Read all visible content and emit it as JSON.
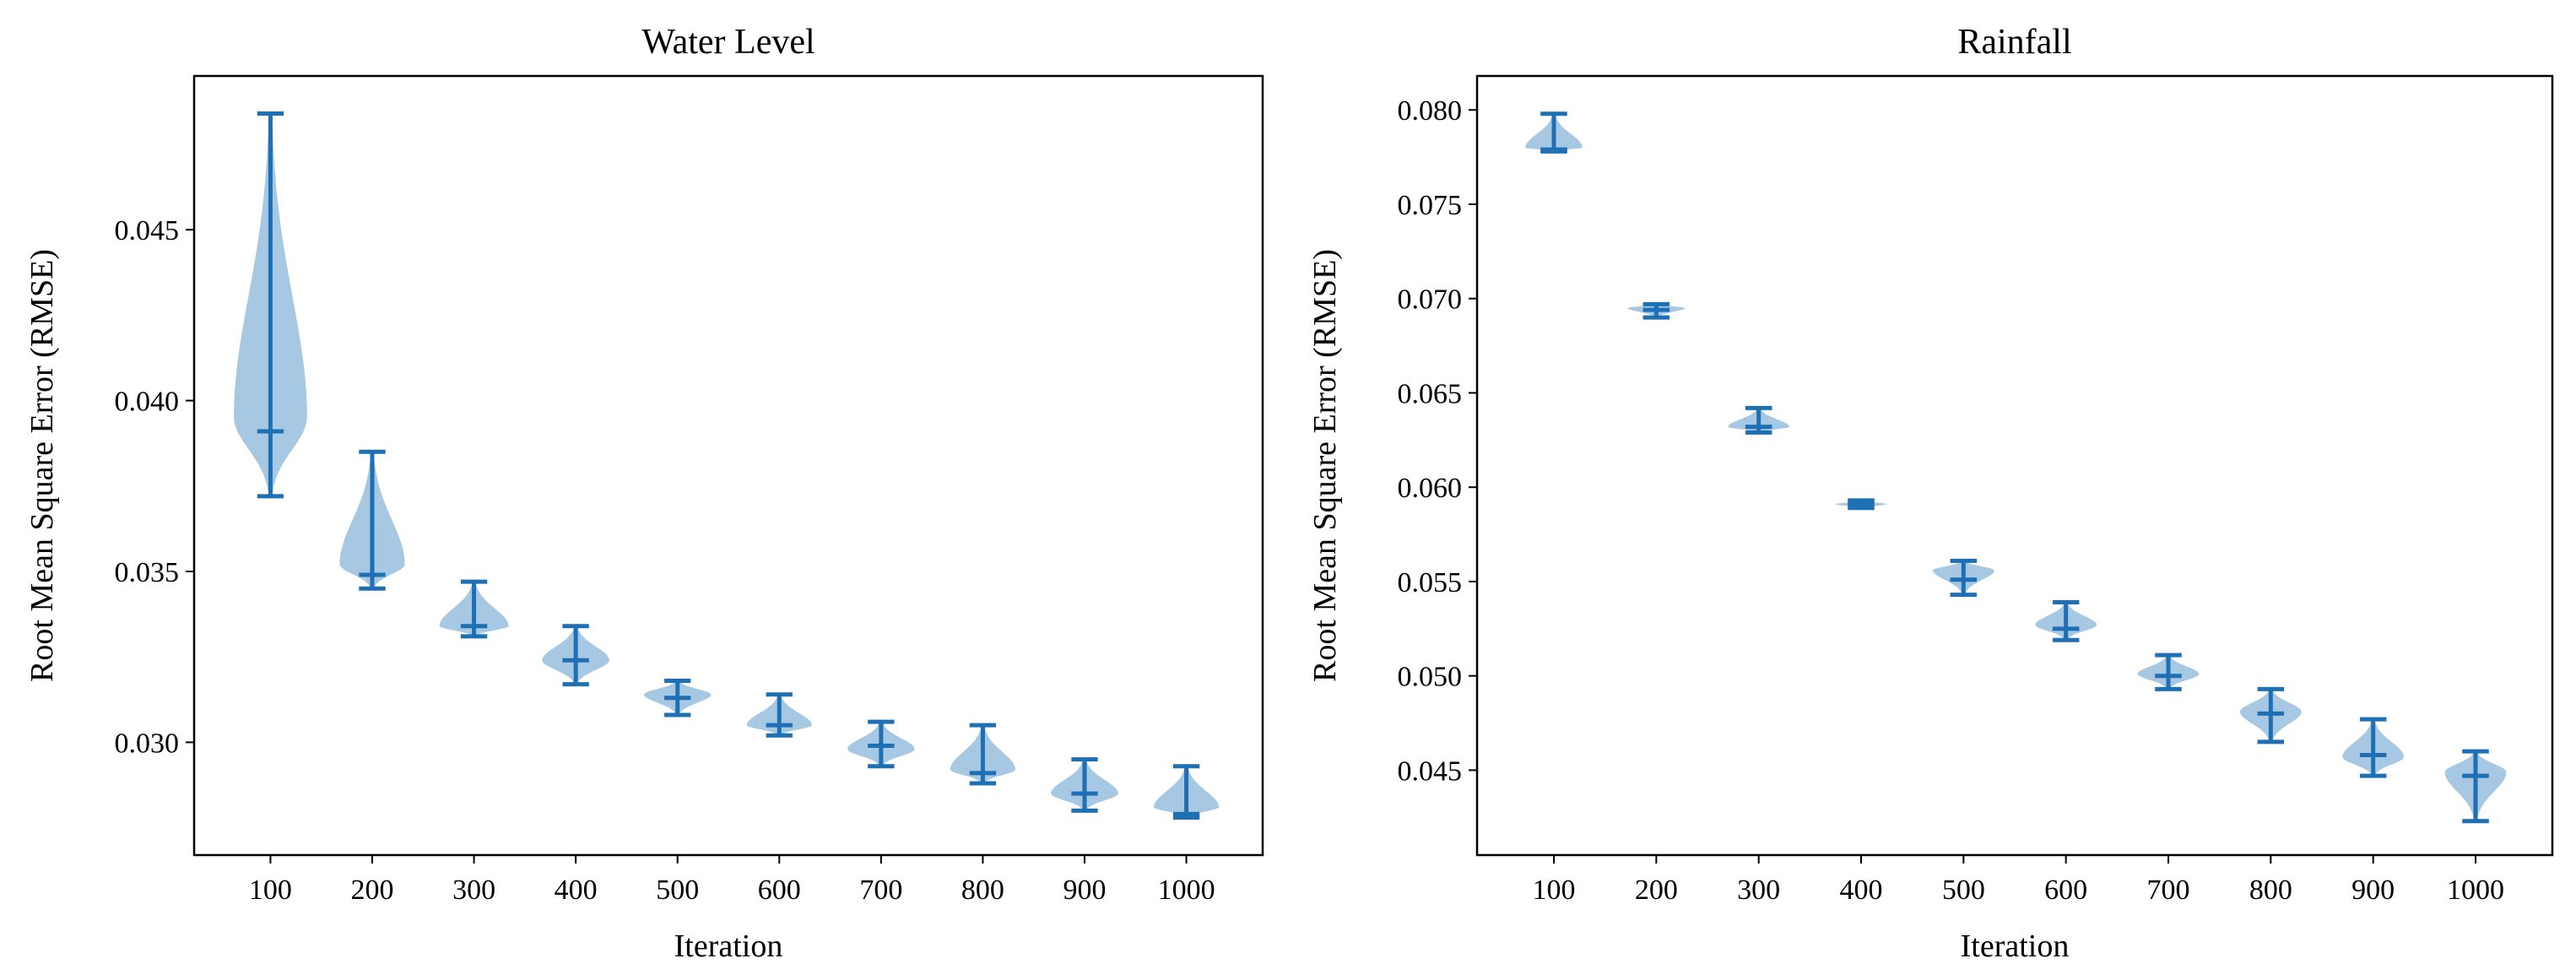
{
  "colors": {
    "violin_fill": "#a6c8e3",
    "marker": "#1f6fb4",
    "axes": "#000000",
    "background": "#ffffff"
  },
  "chart_data": [
    {
      "type": "violin",
      "title": "Water Level",
      "xlabel": "Iteration",
      "ylabel": "Root Mean Square Error (RMSE)",
      "categories": [
        "100",
        "200",
        "300",
        "400",
        "500",
        "600",
        "700",
        "800",
        "900",
        "1000"
      ],
      "ylim": [
        0.0267,
        0.0495
      ],
      "yticks": [
        0.03,
        0.035,
        0.04,
        0.045
      ],
      "ytick_labels": [
        "0.030",
        "0.035",
        "0.040",
        "0.045"
      ],
      "grid": false,
      "violins": [
        {
          "min": 0.0372,
          "median": 0.0391,
          "max": 0.0484,
          "mode": 0.0395,
          "hw": 0.36
        },
        {
          "min": 0.0345,
          "median": 0.0349,
          "max": 0.0385,
          "mode": 0.0352,
          "hw": 0.32
        },
        {
          "min": 0.0331,
          "median": 0.0334,
          "max": 0.0347,
          "mode": 0.0334,
          "hw": 0.34
        },
        {
          "min": 0.0317,
          "median": 0.0324,
          "max": 0.0334,
          "mode": 0.0324,
          "hw": 0.33
        },
        {
          "min": 0.0308,
          "median": 0.0313,
          "max": 0.0318,
          "mode": 0.0314,
          "hw": 0.33
        },
        {
          "min": 0.0302,
          "median": 0.0305,
          "max": 0.0314,
          "mode": 0.0305,
          "hw": 0.32
        },
        {
          "min": 0.0293,
          "median": 0.0299,
          "max": 0.0306,
          "mode": 0.0298,
          "hw": 0.33
        },
        {
          "min": 0.0288,
          "median": 0.0291,
          "max": 0.0305,
          "mode": 0.0292,
          "hw": 0.32
        },
        {
          "min": 0.028,
          "median": 0.0285,
          "max": 0.0295,
          "mode": 0.0285,
          "hw": 0.33
        },
        {
          "min": 0.0278,
          "median": 0.0279,
          "max": 0.0293,
          "mode": 0.0281,
          "hw": 0.32
        }
      ]
    },
    {
      "type": "violin",
      "title": "Rainfall",
      "xlabel": "Iteration",
      "ylabel": "Root Mean Square Error (RMSE)",
      "categories": [
        "100",
        "200",
        "300",
        "400",
        "500",
        "600",
        "700",
        "800",
        "900",
        "1000"
      ],
      "ylim": [
        0.0405,
        0.0818
      ],
      "yticks": [
        0.045,
        0.05,
        0.055,
        0.06,
        0.065,
        0.07,
        0.075,
        0.08
      ],
      "ytick_labels": [
        "0.045",
        "0.050",
        "0.055",
        "0.060",
        "0.065",
        "0.070",
        "0.075",
        "0.080"
      ],
      "grid": false,
      "violins": [
        {
          "min": 0.0778,
          "median": 0.0779,
          "max": 0.0798,
          "mode": 0.078,
          "hw": 0.28
        },
        {
          "min": 0.069,
          "median": 0.0694,
          "max": 0.0697,
          "mode": 0.0695,
          "hw": 0.28
        },
        {
          "min": 0.0629,
          "median": 0.0632,
          "max": 0.0642,
          "mode": 0.0632,
          "hw": 0.3
        },
        {
          "min": 0.0589,
          "median": 0.0591,
          "max": 0.0593,
          "mode": 0.0591,
          "hw": 0.25
        },
        {
          "min": 0.0543,
          "median": 0.0551,
          "max": 0.0561,
          "mode": 0.0556,
          "hw": 0.3
        },
        {
          "min": 0.0519,
          "median": 0.0525,
          "max": 0.0539,
          "mode": 0.0527,
          "hw": 0.3
        },
        {
          "min": 0.0493,
          "median": 0.05,
          "max": 0.0511,
          "mode": 0.0501,
          "hw": 0.3
        },
        {
          "min": 0.0465,
          "median": 0.048,
          "max": 0.0493,
          "mode": 0.0481,
          "hw": 0.3
        },
        {
          "min": 0.0447,
          "median": 0.0458,
          "max": 0.0477,
          "mode": 0.0457,
          "hw": 0.3
        },
        {
          "min": 0.0423,
          "median": 0.0447,
          "max": 0.046,
          "mode": 0.0449,
          "hw": 0.3
        }
      ]
    }
  ]
}
